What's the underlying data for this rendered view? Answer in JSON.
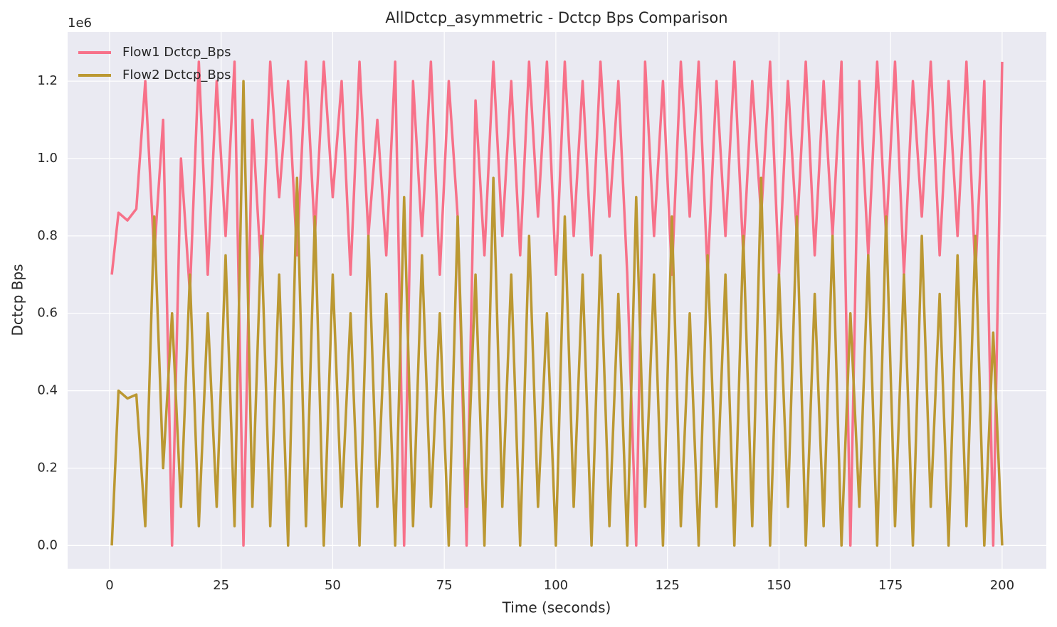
{
  "chart_data": {
    "type": "line",
    "title": "AllDctcp_asymmetric - Dctcp Bps Comparison",
    "x_label": "Time (seconds)",
    "y_label": "Dctcp Bps",
    "y_offset_label": "1e6",
    "x": [
      0.5,
      2,
      4,
      6,
      8,
      10,
      12,
      14,
      16,
      18,
      20,
      22,
      24,
      26,
      28,
      30,
      32,
      34,
      36,
      38,
      40,
      42,
      44,
      46,
      48,
      50,
      52,
      54,
      56,
      58,
      60,
      62,
      64,
      66,
      68,
      70,
      72,
      74,
      76,
      78,
      80,
      82,
      84,
      86,
      88,
      90,
      92,
      94,
      96,
      98,
      100,
      102,
      104,
      106,
      108,
      110,
      112,
      114,
      116,
      118,
      120,
      122,
      124,
      126,
      128,
      130,
      132,
      134,
      136,
      138,
      140,
      142,
      144,
      146,
      148,
      150,
      152,
      154,
      156,
      158,
      160,
      162,
      164,
      166,
      168,
      170,
      172,
      174,
      176,
      178,
      180,
      182,
      184,
      186,
      188,
      190,
      192,
      194,
      196,
      198,
      200
    ],
    "series": [
      {
        "name": "Flow1 Dctcp_Bps",
        "color": "#f77189",
        "values": [
          0.7,
          0.86,
          0.84,
          0.87,
          1.2,
          0.75,
          1.1,
          0,
          1.0,
          0.65,
          1.25,
          0.7,
          1.2,
          0.8,
          1.25,
          0,
          1.1,
          0.7,
          1.25,
          0.9,
          1.2,
          0.75,
          1.25,
          0.8,
          1.25,
          0.9,
          1.2,
          0.7,
          1.25,
          0.8,
          1.1,
          0.75,
          1.25,
          0,
          1.2,
          0.8,
          1.25,
          0.7,
          1.2,
          0.85,
          0,
          1.15,
          0.75,
          1.25,
          0.8,
          1.2,
          0.75,
          1.25,
          0.85,
          1.25,
          0.7,
          1.25,
          0.8,
          1.2,
          0.75,
          1.25,
          0.85,
          1.2,
          0.7,
          0,
          1.25,
          0.8,
          1.2,
          0.7,
          1.25,
          0.85,
          1.25,
          0.7,
          1.2,
          0.8,
          1.25,
          0.75,
          1.2,
          0.85,
          1.25,
          0.7,
          1.2,
          0.8,
          1.25,
          0.75,
          1.2,
          0.8,
          1.25,
          0,
          1.2,
          0.75,
          1.25,
          0.8,
          1.25,
          0.7,
          1.2,
          0.85,
          1.25,
          0.75,
          1.2,
          0.8,
          1.25,
          0.7,
          1.2,
          0,
          1.25
        ]
      },
      {
        "name": "Flow2 Dctcp_Bps",
        "color": "#bb9832",
        "values": [
          0,
          0.4,
          0.38,
          0.39,
          0.05,
          0.85,
          0.2,
          0.6,
          0.1,
          0.7,
          0.05,
          0.6,
          0.1,
          0.75,
          0.05,
          1.2,
          0.1,
          0.8,
          0.05,
          0.7,
          0,
          0.95,
          0.05,
          0.85,
          0,
          0.7,
          0.1,
          0.6,
          0,
          0.8,
          0.1,
          0.65,
          0,
          0.9,
          0.05,
          0.75,
          0.1,
          0.6,
          0,
          0.85,
          0.1,
          0.7,
          0,
          0.95,
          0.1,
          0.7,
          0,
          0.8,
          0.1,
          0.6,
          0,
          0.85,
          0.1,
          0.7,
          0,
          0.75,
          0.05,
          0.65,
          0,
          0.9,
          0.1,
          0.7,
          0,
          0.85,
          0.05,
          0.6,
          0,
          0.75,
          0.1,
          0.7,
          0,
          0.8,
          0.05,
          0.95,
          0,
          0.7,
          0.1,
          0.85,
          0,
          0.65,
          0.05,
          0.8,
          0,
          0.6,
          0.1,
          0.75,
          0,
          0.85,
          0.05,
          0.7,
          0,
          0.8,
          0.1,
          0.65,
          0,
          0.75,
          0.05,
          0.8,
          0,
          0.55,
          0
        ]
      }
    ],
    "xlim": [
      -9.4,
      209.9
    ],
    "ylim": [
      -0.06,
      1.327
    ],
    "xticks": [
      0,
      25,
      50,
      75,
      100,
      125,
      150,
      175,
      200
    ],
    "yticks": [
      {
        "value": 0,
        "label": "0.0"
      },
      {
        "value": 0.2,
        "label": "0.2"
      },
      {
        "value": 0.4,
        "label": "0.4"
      },
      {
        "value": 0.6,
        "label": "0.6"
      },
      {
        "value": 0.8,
        "label": "0.8"
      },
      {
        "value": 1.0,
        "label": "1.0"
      },
      {
        "value": 1.2,
        "label": "1.2"
      }
    ],
    "grid": true,
    "legend": "upper left"
  }
}
